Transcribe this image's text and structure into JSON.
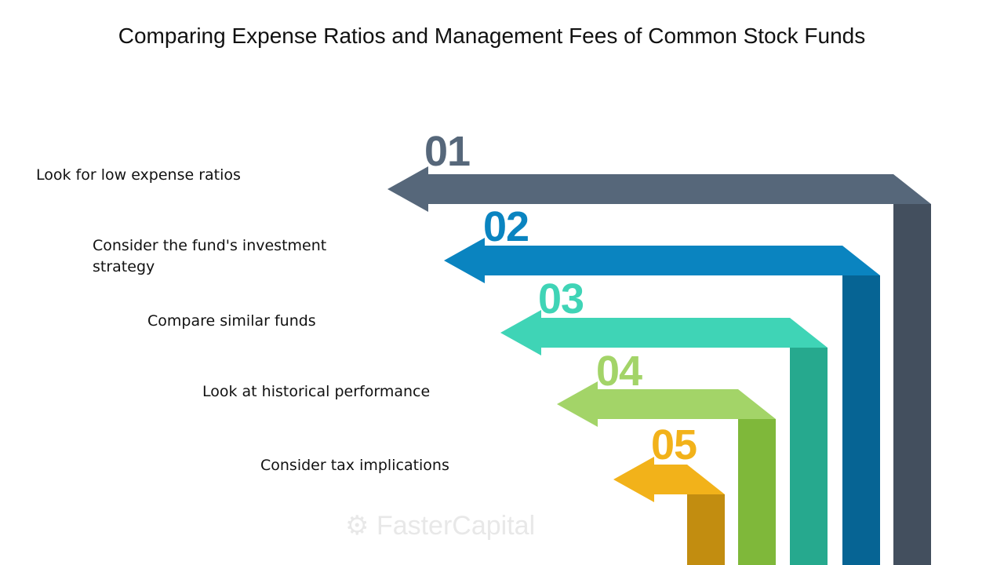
{
  "title": "Comparing Expense Ratios and Management Fees of Common Stock Funds",
  "watermark": "FasterCapital",
  "steps": [
    {
      "number": "01",
      "label": "Look for low expense ratios",
      "color": "#56677a",
      "dark": "#434f5e"
    },
    {
      "number": "02",
      "label": "Consider the fund's investment strategy",
      "color": "#0a84c0",
      "dark": "#066494"
    },
    {
      "number": "03",
      "label": "Compare similar funds",
      "color": "#3fd4b6",
      "dark": "#26a98e"
    },
    {
      "number": "04",
      "label": "Look at historical performance",
      "color": "#a3d468",
      "dark": "#7fb83a"
    },
    {
      "number": "05",
      "label": "Consider tax implications",
      "color": "#f2b21a",
      "dark": "#c28d10"
    }
  ]
}
